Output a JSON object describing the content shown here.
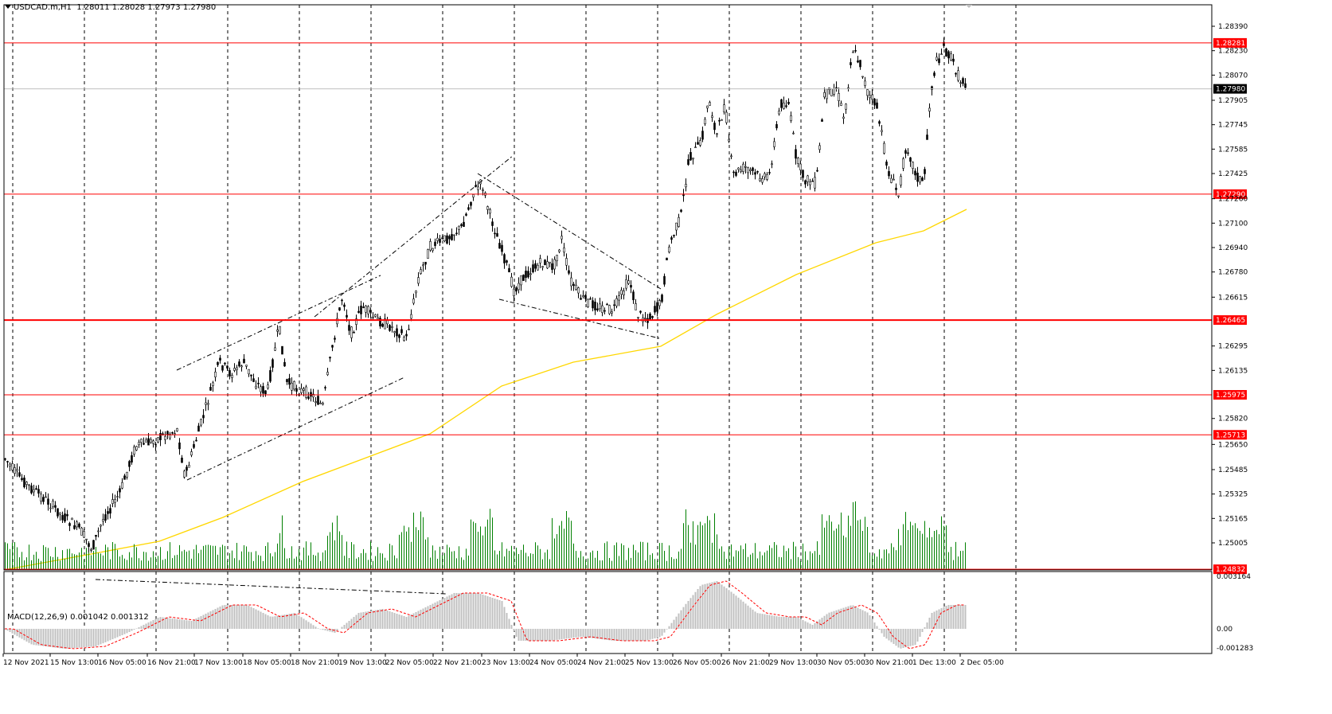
{
  "header": {
    "symbol": "USDCAD.m,H1",
    "ohlc": "1.28011 1.28028 1.27973 1.27980"
  },
  "macd": {
    "label": "MACD(12,26,9) 0.001042 0.001312",
    "scale_labels": [
      "0.003164",
      "0.00",
      "-0.001283"
    ]
  },
  "price_axis": {
    "labels": [
      "1.28390",
      "1.28230",
      "1.28070",
      "1.27905",
      "1.27745",
      "1.27585",
      "1.27425",
      "1.27260",
      "1.27100",
      "1.26940",
      "1.26780",
      "1.26615",
      "1.26295",
      "1.26135",
      "1.25820",
      "1.25650",
      "1.25485",
      "1.25325",
      "1.25165",
      "1.25005"
    ]
  },
  "levels": [
    {
      "price": "1.28281",
      "color": "#ff0000"
    },
    {
      "price": "1.27290",
      "color": "#ff0000"
    },
    {
      "price": "1.26465",
      "color": "#ff0000"
    },
    {
      "price": "1.25975",
      "color": "#ff0000"
    },
    {
      "price": "1.25713",
      "color": "#ff0000"
    },
    {
      "price": "1.24832",
      "color": "#ff0000"
    }
  ],
  "current_price": {
    "price": "1.27980",
    "color": "#000000"
  },
  "time_axis": {
    "labels": [
      "12 Nov 2021",
      "15 Nov 13:00",
      "16 Nov 05:00",
      "16 Nov 21:00",
      "17 Nov 13:00",
      "18 Nov 05:00",
      "18 Nov 21:00",
      "19 Nov 13:00",
      "22 Nov 05:00",
      "22 Nov 21:00",
      "23 Nov 13:00",
      "24 Nov 05:00",
      "24 Nov 21:00",
      "25 Nov 13:00",
      "26 Nov 05:00",
      "26 Nov 21:00",
      "29 Nov 13:00",
      "30 Nov 05:00",
      "30 Nov 21:00",
      "1 Dec 13:00",
      "2 Dec 05:00"
    ]
  },
  "colors": {
    "candle": "#000000",
    "volume": "#008000",
    "moving_average": "#ffd700",
    "macd_histogram": "#c0c0c0",
    "macd_signal": "#ff0000",
    "grid": "#000000",
    "level_line": "#ff0000"
  }
}
